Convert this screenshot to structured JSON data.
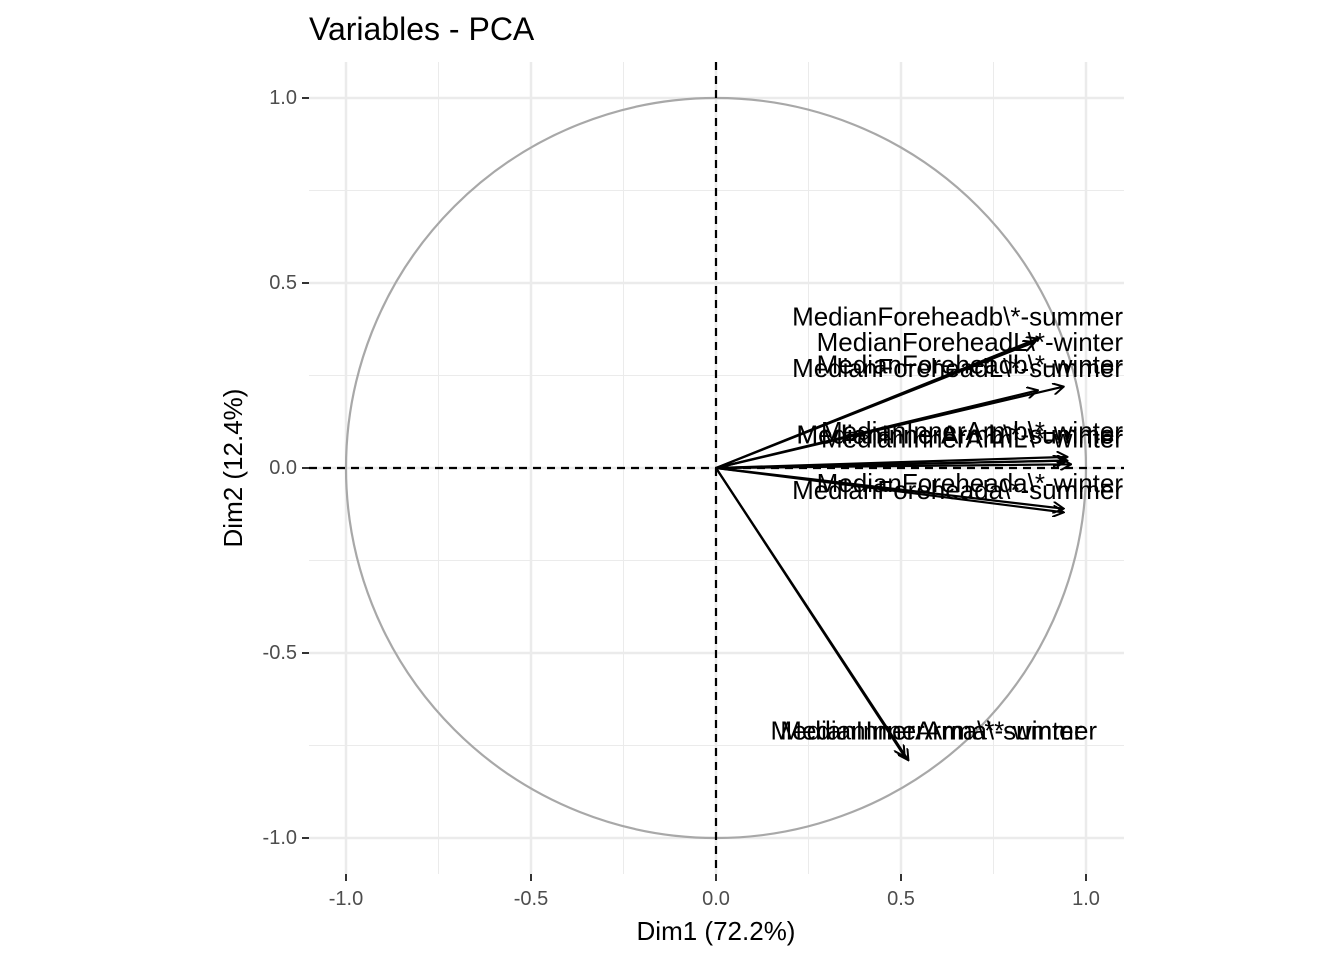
{
  "chart_data": {
    "type": "scatter",
    "title": "Variables - PCA",
    "xlabel": "Dim1 (72.2%)",
    "ylabel": "Dim2 (12.4%)",
    "xlim": [
      -1.1,
      1.1
    ],
    "ylim": [
      -1.1,
      1.1
    ],
    "x_ticks": [
      "-1.0",
      "-0.5",
      "0.0",
      "0.5",
      "1.0"
    ],
    "y_ticks": [
      "-1.0",
      "-0.5",
      "0.0",
      "0.5",
      "1.0"
    ],
    "grid": true,
    "unit_circle": true,
    "colors": {
      "arrow": "#000000",
      "circle": "#a8a8a8",
      "grid": "#ebebeb",
      "tick_text": "#4d4d4d"
    },
    "variables": [
      {
        "label": "MedianForeheadb\\*-summer",
        "x": 0.87,
        "y": 0.35,
        "label_x": 1.1,
        "label_y": 0.41
      },
      {
        "label": "MedianForeheadL\\*-winter",
        "x": 0.86,
        "y": 0.34,
        "label_x": 1.1,
        "label_y": 0.34
      },
      {
        "label": "MedianForeheadb\\*-winter",
        "x": 0.94,
        "y": 0.22,
        "label_x": 1.1,
        "label_y": 0.28
      },
      {
        "label": "MedianForeheadL\\*-summer",
        "x": 0.87,
        "y": 0.21,
        "label_x": 1.1,
        "label_y": 0.27
      },
      {
        "label": "MedianInnerArmb\\*-winter",
        "x": 0.95,
        "y": 0.03,
        "label_x": 1.1,
        "label_y": 0.1
      },
      {
        "label": "MedianInnerArmb\\*-summer",
        "x": 0.94,
        "y": 0.02,
        "label_x": 1.1,
        "label_y": 0.09
      },
      {
        "label": "MedianInnerArmL\\*-winter",
        "x": 0.96,
        "y": 0.01,
        "label_x": 1.1,
        "label_y": 0.08
      },
      {
        "label": "MedianInnerArmL\\*-summer",
        "x": 0.95,
        "y": 0.02,
        "label_x": 1.1,
        "label_y": 0.09
      },
      {
        "label": "MedianForeheada\\*-winter",
        "x": 0.94,
        "y": -0.11,
        "label_x": 1.1,
        "label_y": -0.04
      },
      {
        "label": "MedianForeheada\\*-summer",
        "x": 0.94,
        "y": -0.12,
        "label_x": 1.1,
        "label_y": -0.06
      },
      {
        "label": "MedianInnerArma\\*-winter",
        "x": 0.51,
        "y": -0.78,
        "label_x": 0.99,
        "label_y": -0.71
      },
      {
        "label": "MedianInnerArma\\*-summer",
        "x": 0.52,
        "y": -0.79,
        "label_x": 1.03,
        "label_y": -0.71
      }
    ]
  }
}
